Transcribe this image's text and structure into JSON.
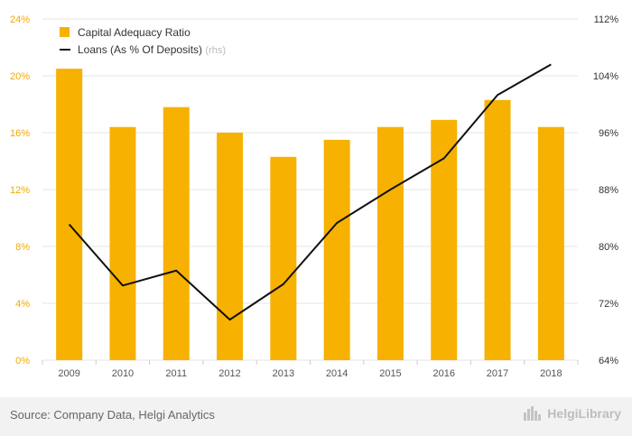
{
  "chart_data": {
    "type": "bar",
    "categories": [
      "2009",
      "2010",
      "2011",
      "2012",
      "2013",
      "2014",
      "2015",
      "2016",
      "2017",
      "2018"
    ],
    "series": [
      {
        "name": "Capital Adequacy Ratio",
        "type": "bar",
        "axis": "left",
        "values": [
          20.5,
          16.4,
          17.8,
          16.0,
          14.3,
          15.5,
          16.4,
          16.9,
          18.3,
          16.4
        ]
      },
      {
        "name": "Loans (As % Of Deposits)",
        "type": "line",
        "axis": "right",
        "values": [
          83.1,
          74.5,
          76.6,
          69.7,
          74.7,
          83.3,
          88.0,
          92.4,
          101.3,
          105.6
        ]
      }
    ],
    "legend_suffix": "(rhs)",
    "ylim": [
      0,
      24
    ],
    "yticks": [
      "0%",
      "4%",
      "8%",
      "12%",
      "16%",
      "20%",
      "24%"
    ],
    "y2lim": [
      64,
      112
    ],
    "y2ticks": [
      "64%",
      "72%",
      "80%",
      "88%",
      "96%",
      "104%",
      "112%"
    ],
    "grid": true,
    "legend_position": "top-left",
    "colors": {
      "bar": "#f7b100",
      "line": "#111111",
      "grid": "#e6e6e6",
      "left_axis_text": "#f2a900"
    }
  },
  "footer": {
    "source": "Source: Company Data, Helgi Analytics",
    "brand": "HelgiLibrary",
    "brand_icon": "city-skyline-icon"
  }
}
